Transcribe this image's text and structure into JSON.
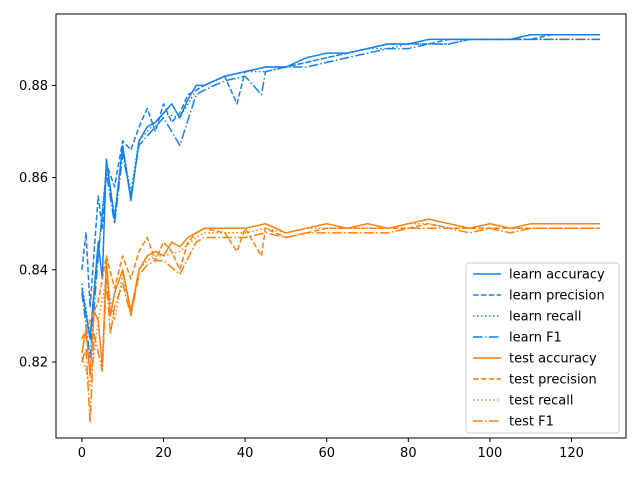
{
  "chart_data": {
    "type": "line",
    "title": "",
    "xlabel": "",
    "ylabel": "",
    "xlim": [
      -6.35,
      133.35
    ],
    "ylim": [
      0.8035,
      0.8955
    ],
    "x_ticks": [
      0,
      20,
      40,
      60,
      80,
      100,
      120
    ],
    "y_ticks": [
      0.82,
      0.84,
      0.86,
      0.88
    ],
    "y_tick_labels": [
      "0.82",
      "0.84",
      "0.86",
      "0.88"
    ],
    "legend_position": "lower-right",
    "grid": false,
    "colors": {
      "learn": "#1681e9",
      "test": "#ff7f0e",
      "axis": "#000000"
    },
    "series": [
      {
        "name": "learn accuracy",
        "group": "learn",
        "style": "solid",
        "x": [
          0,
          2,
          4,
          5,
          6,
          8,
          10,
          12,
          14,
          16,
          18,
          20,
          22,
          24,
          26,
          28,
          30,
          35,
          40,
          45,
          50,
          55,
          60,
          65,
          70,
          75,
          80,
          85,
          90,
          95,
          100,
          105,
          110,
          115,
          120,
          125,
          127
        ],
        "y": [
          0.836,
          0.825,
          0.846,
          0.838,
          0.864,
          0.851,
          0.867,
          0.855,
          0.868,
          0.871,
          0.872,
          0.874,
          0.876,
          0.873,
          0.877,
          0.88,
          0.88,
          0.882,
          0.883,
          0.884,
          0.884,
          0.886,
          0.887,
          0.887,
          0.888,
          0.889,
          0.889,
          0.89,
          0.89,
          0.89,
          0.89,
          0.89,
          0.891,
          0.891,
          0.891,
          0.891,
          0.891
        ]
      },
      {
        "name": "learn precision",
        "group": "learn",
        "style": "dashed",
        "x": [
          0,
          1,
          2,
          4,
          5,
          6,
          8,
          10,
          12,
          14,
          16,
          18,
          20,
          22,
          24,
          26,
          28,
          30,
          35,
          38,
          40,
          45,
          50,
          55,
          60,
          65,
          70,
          75,
          80,
          85,
          90,
          95,
          100,
          105,
          110,
          115,
          120,
          125,
          127
        ],
        "y": [
          0.84,
          0.848,
          0.832,
          0.856,
          0.849,
          0.863,
          0.858,
          0.868,
          0.866,
          0.871,
          0.875,
          0.87,
          0.876,
          0.872,
          0.874,
          0.878,
          0.879,
          0.88,
          0.882,
          0.876,
          0.883,
          0.884,
          0.884,
          0.885,
          0.886,
          0.887,
          0.888,
          0.889,
          0.889,
          0.889,
          0.89,
          0.89,
          0.89,
          0.89,
          0.89,
          0.891,
          0.891,
          0.891,
          0.891
        ]
      },
      {
        "name": "learn recall",
        "group": "learn",
        "style": "dotted",
        "x": [
          0,
          2,
          4,
          6,
          8,
          10,
          12,
          14,
          16,
          18,
          20,
          24,
          28,
          30,
          35,
          40,
          45,
          50,
          55,
          60,
          65,
          70,
          75,
          80,
          85,
          90,
          95,
          100,
          105,
          110,
          115,
          120,
          125,
          127
        ],
        "y": [
          0.837,
          0.826,
          0.844,
          0.862,
          0.852,
          0.866,
          0.857,
          0.868,
          0.87,
          0.872,
          0.874,
          0.873,
          0.879,
          0.88,
          0.882,
          0.883,
          0.883,
          0.884,
          0.885,
          0.886,
          0.887,
          0.888,
          0.888,
          0.889,
          0.889,
          0.889,
          0.89,
          0.89,
          0.89,
          0.89,
          0.89,
          0.89,
          0.89,
          0.89
        ]
      },
      {
        "name": "learn F1",
        "group": "learn",
        "style": "dashdot",
        "x": [
          0,
          2,
          4,
          6,
          8,
          10,
          12,
          14,
          16,
          18,
          20,
          24,
          28,
          30,
          35,
          40,
          44,
          45,
          50,
          55,
          60,
          65,
          70,
          75,
          80,
          85,
          90,
          95,
          100,
          105,
          110,
          115,
          120,
          125,
          127
        ],
        "y": [
          0.835,
          0.821,
          0.843,
          0.861,
          0.85,
          0.865,
          0.856,
          0.867,
          0.869,
          0.871,
          0.873,
          0.867,
          0.878,
          0.879,
          0.881,
          0.882,
          0.878,
          0.883,
          0.884,
          0.884,
          0.885,
          0.886,
          0.887,
          0.888,
          0.888,
          0.889,
          0.889,
          0.89,
          0.89,
          0.89,
          0.89,
          0.89,
          0.89,
          0.89,
          0.89
        ]
      },
      {
        "name": "test accuracy",
        "group": "test",
        "style": "solid",
        "x": [
          0,
          1,
          2,
          3,
          4,
          5,
          6,
          7,
          8,
          10,
          12,
          14,
          16,
          18,
          20,
          22,
          24,
          26,
          28,
          30,
          35,
          40,
          45,
          50,
          55,
          60,
          65,
          70,
          75,
          80,
          85,
          90,
          95,
          100,
          105,
          110,
          115,
          120,
          125,
          127
        ],
        "y": [
          0.822,
          0.827,
          0.817,
          0.831,
          0.829,
          0.819,
          0.842,
          0.83,
          0.835,
          0.84,
          0.831,
          0.84,
          0.843,
          0.844,
          0.843,
          0.846,
          0.845,
          0.847,
          0.848,
          0.849,
          0.849,
          0.849,
          0.85,
          0.848,
          0.849,
          0.85,
          0.849,
          0.85,
          0.849,
          0.85,
          0.851,
          0.85,
          0.849,
          0.85,
          0.849,
          0.85,
          0.85,
          0.85,
          0.85,
          0.85
        ]
      },
      {
        "name": "test precision",
        "group": "test",
        "style": "dashed",
        "x": [
          0,
          2,
          4,
          6,
          8,
          10,
          12,
          14,
          16,
          18,
          20,
          22,
          24,
          26,
          28,
          30,
          35,
          38,
          40,
          44,
          45,
          50,
          55,
          60,
          65,
          70,
          75,
          80,
          85,
          90,
          95,
          100,
          105,
          110,
          115,
          120,
          125,
          127
        ],
        "y": [
          0.825,
          0.829,
          0.833,
          0.843,
          0.836,
          0.843,
          0.838,
          0.844,
          0.847,
          0.842,
          0.846,
          0.844,
          0.84,
          0.846,
          0.848,
          0.849,
          0.848,
          0.844,
          0.849,
          0.843,
          0.849,
          0.847,
          0.848,
          0.849,
          0.849,
          0.849,
          0.849,
          0.849,
          0.85,
          0.849,
          0.849,
          0.849,
          0.849,
          0.849,
          0.849,
          0.849,
          0.849,
          0.849
        ]
      },
      {
        "name": "test recall",
        "group": "test",
        "style": "dotted",
        "x": [
          0,
          2,
          4,
          6,
          8,
          10,
          12,
          14,
          16,
          18,
          20,
          24,
          28,
          30,
          35,
          40,
          45,
          50,
          55,
          60,
          65,
          70,
          75,
          80,
          85,
          90,
          95,
          100,
          105,
          110,
          115,
          120,
          125,
          127
        ],
        "y": [
          0.821,
          0.815,
          0.829,
          0.838,
          0.829,
          0.839,
          0.83,
          0.84,
          0.842,
          0.843,
          0.843,
          0.844,
          0.847,
          0.848,
          0.848,
          0.848,
          0.849,
          0.848,
          0.849,
          0.849,
          0.849,
          0.849,
          0.849,
          0.85,
          0.85,
          0.849,
          0.849,
          0.85,
          0.849,
          0.849,
          0.849,
          0.849,
          0.849,
          0.849
        ]
      },
      {
        "name": "test F1",
        "group": "test",
        "style": "dashdot",
        "x": [
          0,
          1,
          2,
          3,
          4,
          5,
          6,
          7,
          8,
          10,
          12,
          14,
          16,
          18,
          20,
          24,
          28,
          30,
          35,
          40,
          45,
          50,
          55,
          60,
          65,
          70,
          75,
          80,
          85,
          90,
          95,
          100,
          105,
          110,
          115,
          120,
          125,
          127
        ],
        "y": [
          0.82,
          0.823,
          0.807,
          0.826,
          0.822,
          0.818,
          0.838,
          0.826,
          0.832,
          0.837,
          0.83,
          0.839,
          0.841,
          0.842,
          0.842,
          0.839,
          0.846,
          0.847,
          0.847,
          0.847,
          0.848,
          0.847,
          0.848,
          0.848,
          0.848,
          0.848,
          0.848,
          0.849,
          0.849,
          0.849,
          0.848,
          0.849,
          0.848,
          0.849,
          0.849,
          0.849,
          0.849,
          0.849
        ]
      }
    ]
  }
}
